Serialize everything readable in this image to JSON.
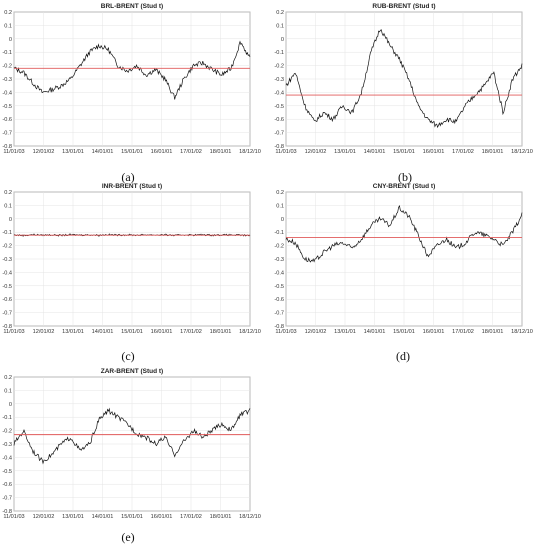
{
  "chart_data": [
    {
      "type": "line",
      "title": "BRL-BRENT (Stud t)",
      "caption": "(a)",
      "ylim": [
        -0.8,
        0.2
      ],
      "yticks": [
        "0.2",
        "0.1",
        "0",
        "-0.1",
        "-0.2",
        "-0.3",
        "-0.4",
        "-0.5",
        "-0.6",
        "-0.7",
        "-0.8"
      ],
      "xticks": [
        "11/01/03",
        "12/01/02",
        "13/01/01",
        "14/01/01",
        "15/01/01",
        "16/01/01",
        "17/01/02",
        "18/01/01",
        "18/12/10"
      ],
      "grid": true,
      "series": [
        {
          "values": [
            -0.22,
            -0.25,
            -0.33,
            -0.4,
            -0.38,
            -0.35,
            -0.3,
            -0.2,
            -0.1,
            -0.05,
            -0.08,
            -0.2,
            -0.24,
            -0.2,
            -0.27,
            -0.23,
            -0.3,
            -0.44,
            -0.3,
            -0.2,
            -0.18,
            -0.23,
            -0.27,
            -0.22,
            -0.02,
            -0.15
          ]
        },
        {
          "values": [
            -0.22,
            -0.22
          ]
        }
      ]
    },
    {
      "type": "line",
      "title": "RUB-BRENT (Stud t)",
      "caption": "(b)",
      "ylim": [
        -0.8,
        0.2
      ],
      "yticks": [
        "0.2",
        "0.1",
        "0",
        "-0.1",
        "-0.2",
        "-0.3",
        "-0.4",
        "-0.5",
        "-0.6",
        "-0.7",
        "-0.8"
      ],
      "xticks": [
        "11/01/03",
        "12/01/02",
        "13/01/01",
        "14/01/01",
        "15/01/01",
        "16/01/01",
        "17/01/02",
        "18/01/01",
        "18/12/10"
      ],
      "grid": true,
      "series": [
        {
          "values": [
            -0.35,
            -0.25,
            -0.5,
            -0.62,
            -0.55,
            -0.6,
            -0.5,
            -0.55,
            -0.4,
            -0.1,
            0.08,
            -0.05,
            -0.15,
            -0.3,
            -0.5,
            -0.6,
            -0.65,
            -0.6,
            -0.62,
            -0.5,
            -0.42,
            -0.35,
            -0.25,
            -0.55,
            -0.3,
            -0.2
          ]
        },
        {
          "values": [
            -0.42,
            -0.42
          ]
        }
      ]
    },
    {
      "type": "line",
      "title": "INR-BRENT (Stud t)",
      "caption": "(c)",
      "ylim": [
        -0.8,
        0.2
      ],
      "yticks": [
        "0.2",
        "0.1",
        "0",
        "-0.1",
        "-0.2",
        "-0.3",
        "-0.4",
        "-0.5",
        "-0.6",
        "-0.7",
        "-0.8"
      ],
      "xticks": [
        "11/01/03",
        "12/01/02",
        "13/01/01",
        "14/01/01",
        "15/01/01",
        "16/01/01",
        "17/01/02",
        "18/01/01",
        "18/12/10"
      ],
      "grid": true,
      "series": [
        {
          "values": [
            -0.12,
            -0.125,
            -0.118,
            -0.122,
            -0.12,
            -0.124,
            -0.119,
            -0.121,
            -0.12,
            -0.123,
            -0.118,
            -0.121,
            -0.12,
            -0.122,
            -0.119,
            -0.121,
            -0.12,
            -0.124,
            -0.12,
            -0.121,
            -0.119,
            -0.122,
            -0.12,
            -0.121,
            -0.123,
            -0.125
          ]
        },
        {
          "values": [
            -0.122,
            -0.122
          ]
        }
      ]
    },
    {
      "type": "line",
      "title": "CNY-BRENT (Stud t)",
      "caption": "(d)",
      "ylim": [
        -0.8,
        0.2
      ],
      "yticks": [
        "0.2",
        "0.1",
        "0",
        "-0.1",
        "-0.2",
        "-0.3",
        "-0.4",
        "-0.5",
        "-0.6",
        "-0.7",
        "-0.8"
      ],
      "xticks": [
        "11/01/03",
        "12/01/02",
        "13/01/01",
        "14/01/01",
        "15/01/01",
        "16/01/01",
        "17/01/02",
        "18/01/01",
        "18/12/10"
      ],
      "grid": true,
      "series": [
        {
          "values": [
            -0.15,
            -0.18,
            -0.3,
            -0.32,
            -0.25,
            -0.2,
            -0.18,
            -0.22,
            -0.15,
            -0.05,
            0.0,
            -0.05,
            0.08,
            0.02,
            -0.12,
            -0.28,
            -0.2,
            -0.15,
            -0.22,
            -0.18,
            -0.1,
            -0.12,
            -0.15,
            -0.2,
            -0.1,
            0.03
          ]
        },
        {
          "values": [
            -0.14,
            -0.14
          ]
        }
      ]
    },
    {
      "type": "line",
      "title": "ZAR-BRENT (Stud t)",
      "caption": "(e)",
      "ylim": [
        -0.8,
        0.2
      ],
      "yticks": [
        "0.2",
        "0.1",
        "0",
        "-0.1",
        "-0.2",
        "-0.3",
        "-0.4",
        "-0.5",
        "-0.6",
        "-0.7",
        "-0.8"
      ],
      "xticks": [
        "11/01/03",
        "12/01/02",
        "13/01/01",
        "14/01/01",
        "15/01/01",
        "16/01/01",
        "17/01/02",
        "18/01/01",
        "18/12/10"
      ],
      "grid": true,
      "series": [
        {
          "values": [
            -0.3,
            -0.2,
            -0.35,
            -0.43,
            -0.38,
            -0.3,
            -0.25,
            -0.35,
            -0.3,
            -0.12,
            -0.05,
            -0.1,
            -0.15,
            -0.22,
            -0.25,
            -0.3,
            -0.25,
            -0.38,
            -0.28,
            -0.2,
            -0.25,
            -0.2,
            -0.15,
            -0.2,
            -0.08,
            -0.05
          ]
        },
        {
          "values": [
            -0.23,
            -0.23
          ]
        }
      ]
    }
  ]
}
